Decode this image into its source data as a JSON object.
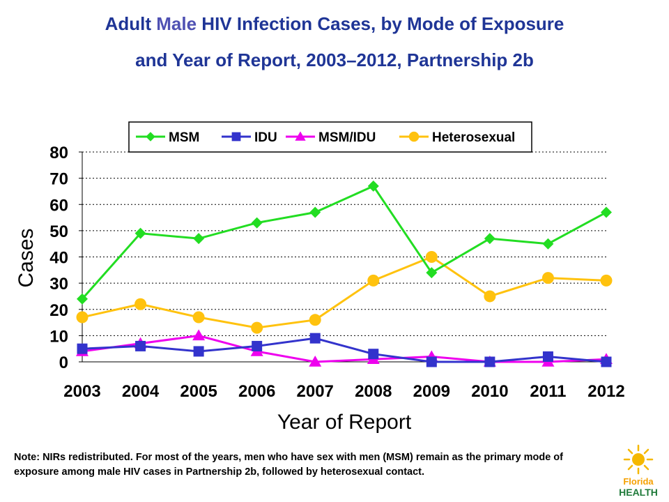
{
  "title": {
    "line1_prefix": "Adult ",
    "line1_accent": "Male",
    "line1_rest": " HIV Infection Cases, by Mode of Exposure",
    "line2": "and Year of Report, 2003–2012, Partnership 2b"
  },
  "note": "Note:  NIRs redistributed.  For most of the years, men who have sex with men (MSM) remain as the primary mode of exposure among male HIV cases in Partnership 2b, followed by heterosexual contact.",
  "logo": {
    "line1": "Florida",
    "line2": "HEALTH"
  },
  "colors": {
    "title": "#1f3596",
    "title_accent": "#4f51b3",
    "logo_sun": "#f5b800",
    "logo_text": "#1f7a3a"
  },
  "chart_data": {
    "type": "line",
    "xlabel": "Year of Report",
    "ylabel": "Cases",
    "ylim": [
      0,
      80
    ],
    "yticks": [
      0,
      10,
      20,
      30,
      40,
      50,
      60,
      70,
      80
    ],
    "grid": "horizontal-dotted",
    "legend_position": "top",
    "categories": [
      "2003",
      "2004",
      "2005",
      "2006",
      "2007",
      "2008",
      "2009",
      "2010",
      "2011",
      "2012"
    ],
    "series": [
      {
        "name": "MSM",
        "color": "#22dd22",
        "marker": "diamond",
        "values": [
          24,
          49,
          47,
          53,
          57,
          67,
          34,
          47,
          45,
          57
        ]
      },
      {
        "name": "IDU",
        "color": "#3333cc",
        "marker": "square",
        "values": [
          5,
          6,
          4,
          6,
          9,
          3,
          0,
          0,
          2,
          0
        ]
      },
      {
        "name": "MSM/IDU",
        "color": "#ee00ee",
        "marker": "triangle",
        "values": [
          4,
          7,
          10,
          4,
          0,
          1,
          2,
          0,
          0,
          1
        ]
      },
      {
        "name": "Heterosexual",
        "color": "#ffc20e",
        "marker": "circle",
        "values": [
          17,
          22,
          17,
          13,
          16,
          31,
          40,
          25,
          32,
          31
        ]
      }
    ]
  }
}
